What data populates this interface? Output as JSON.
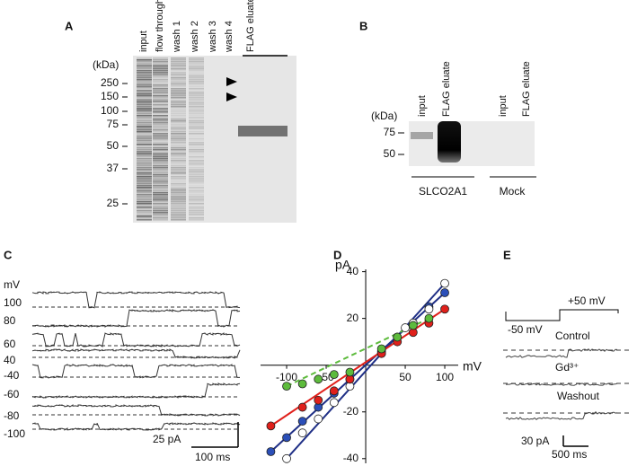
{
  "panels": {
    "a": {
      "label": "A",
      "unit": "(kDa)",
      "lanes": [
        "input",
        "flow through",
        "wash 1",
        "wash 2",
        "wash 3",
        "wash 4",
        "FLAG eluate"
      ],
      "markers": [
        "250",
        "150",
        "100",
        "75",
        "50",
        "37",
        "25"
      ]
    },
    "b": {
      "label": "B",
      "unit": "(kDa)",
      "lanes": [
        "input",
        "FLAG eluate",
        "input",
        "FLAG eluate"
      ],
      "markers": [
        "75",
        "50"
      ],
      "groups": [
        "SLCO2A1",
        "Mock"
      ]
    },
    "c": {
      "label": "C",
      "unit": "mV",
      "voltages": [
        "100",
        "80",
        "60",
        "40",
        "-40",
        "-60",
        "-80",
        "-100"
      ],
      "scale_current": "25 pA",
      "scale_time": "100 ms"
    },
    "d": {
      "label": "D"
    },
    "e": {
      "label": "E",
      "step_low": "-50 mV",
      "step_high": "+50 mV",
      "conditions": [
        "Control",
        "Gd³⁺",
        "Washout"
      ],
      "scale_current": "30 pA",
      "scale_time": "500 ms"
    }
  },
  "chart_data": {
    "type": "scatter",
    "xlabel": "mV",
    "ylabel": "pA",
    "xlim": [
      -133,
      117
    ],
    "ylim": [
      -42,
      41
    ],
    "xticks": [
      -100,
      -50,
      50,
      100
    ],
    "yticks": [
      -40,
      -20,
      20,
      40
    ],
    "series": [
      {
        "color": "#2b4fb8",
        "line_color": "#1f2f86",
        "line_style": "solid",
        "x": [
          -120,
          -100,
          -80,
          -60,
          -40,
          -20,
          20,
          40,
          60,
          80,
          100
        ],
        "values": [
          -37,
          -31,
          -24,
          -18,
          -12,
          -6,
          6,
          12,
          18,
          25,
          31
        ]
      },
      {
        "color": "#ffffff",
        "line_color": "#1f2f86",
        "line_style": "solid",
        "x": [
          -100,
          -80,
          -60,
          -40,
          -20,
          20,
          40,
          50,
          60,
          80,
          100
        ],
        "values": [
          -40,
          -29,
          -23,
          -16,
          -9,
          5,
          12,
          16,
          18,
          24,
          35
        ]
      },
      {
        "color": "#e0201b",
        "line_color": "#e0201b",
        "line_style": "solid",
        "x": [
          -120,
          -80,
          -60,
          -40,
          -20,
          20,
          40,
          60,
          80,
          100
        ],
        "values": [
          -26,
          -18,
          -15,
          -11,
          -6,
          5,
          10,
          14,
          18,
          24
        ]
      },
      {
        "color": "#5dbb3c",
        "line_color": "#5dbb3c",
        "line_style": "dashed",
        "x": [
          -100,
          -80,
          -60,
          -40,
          -20,
          20,
          40,
          60,
          80
        ],
        "values": [
          -9,
          -8,
          -6,
          -4,
          -3,
          7,
          12,
          17,
          20
        ]
      }
    ]
  }
}
